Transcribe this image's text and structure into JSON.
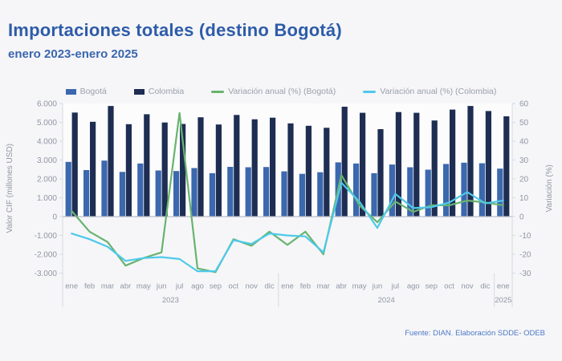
{
  "page": {
    "title": "Importaciones totales (destino Bogotá)",
    "subtitle": "enero 2023-enero 2025",
    "source_note": "Fuente: DIAN. Elaboración SDDE- ODEB"
  },
  "colors": {
    "page_background": "#f6f6f8",
    "plot_background_above_zero": "#fcfcfd",
    "title_blue": "#2e5ca9",
    "source_blue": "#4d79c7",
    "axis_text": "#8f96a3",
    "axis_line": "#b9bdc6",
    "border_line": "#d7d9de",
    "bogota_bar": "#3b68ae",
    "colombia_bar": "#1e2d52",
    "var_bogota_line": "#67b46f",
    "var_colombia_line": "#4ec9ea"
  },
  "chart_data": {
    "type": "combo_bar_line",
    "title": "Importaciones totales (destino Bogotá)",
    "subtitle": "enero 2023-enero 2025",
    "grid": "off",
    "legend_position": "top-center",
    "categories": {
      "months": [
        "ene",
        "feb",
        "mar",
        "abr",
        "may",
        "jun",
        "jul",
        "ago",
        "sep",
        "oct",
        "nov",
        "dic",
        "ene",
        "feb",
        "mar",
        "abr",
        "may",
        "jun",
        "jul",
        "ago",
        "sep",
        "oct",
        "nov",
        "dic",
        "ene"
      ],
      "year_groups": [
        {
          "label": "2023",
          "span": 12
        },
        {
          "label": "2024",
          "span": 12
        },
        {
          "label": "2025",
          "span": 1
        }
      ]
    },
    "left_axis": {
      "title": "Valor CIF (millones USD)",
      "min": -3000,
      "max": 6000,
      "step": 1000,
      "ticks": [
        {
          "label": "6.000",
          "value": 6000
        },
        {
          "label": "5.000",
          "value": 5000
        },
        {
          "label": "4.000",
          "value": 4000
        },
        {
          "label": "3.000",
          "value": 3000
        },
        {
          "label": "2.000",
          "value": 2000
        },
        {
          "label": "1.000",
          "value": 1000
        },
        {
          "label": "0",
          "value": 0
        },
        {
          "label": "-1.000",
          "value": -1000
        },
        {
          "label": "-2.000",
          "value": -2000
        },
        {
          "label": "-3.000",
          "value": -3000
        }
      ]
    },
    "right_axis": {
      "title": "Variación (%)",
      "min": -30,
      "max": 60,
      "step": 10,
      "ticks": [
        {
          "label": "60",
          "value": 60
        },
        {
          "label": "50",
          "value": 50
        },
        {
          "label": "40",
          "value": 40
        },
        {
          "label": "30",
          "value": 30
        },
        {
          "label": "20",
          "value": 20
        },
        {
          "label": "10",
          "value": 10
        },
        {
          "label": "0",
          "value": 0
        },
        {
          "label": "-10",
          "value": -10
        },
        {
          "label": "-20",
          "value": -20
        },
        {
          "label": "-30",
          "value": -30
        }
      ]
    },
    "series": [
      {
        "id": "bogota",
        "name": "Bogotá",
        "type": "bar",
        "axis": "left",
        "color": "#3b68ae",
        "values": [
          2900,
          2470,
          2970,
          2370,
          2815,
          2445,
          2415,
          2575,
          2300,
          2640,
          2615,
          2630,
          2400,
          2270,
          2355,
          2875,
          2815,
          2300,
          2760,
          2615,
          2490,
          2790,
          2860,
          2830,
          2545
        ]
      },
      {
        "id": "colombia",
        "name": "Colombia",
        "type": "bar",
        "axis": "left",
        "color": "#1e2d52",
        "values": [
          5520,
          5030,
          5870,
          4900,
          5430,
          4990,
          4915,
          5270,
          4885,
          5390,
          5160,
          5245,
          4945,
          4815,
          4710,
          5830,
          5505,
          4640,
          5545,
          5505,
          5100,
          5675,
          5870,
          5600,
          5320
        ]
      },
      {
        "id": "var-bogota",
        "name": "Variación anual (%) (Bogotá)",
        "type": "line",
        "axis": "right",
        "color": "#67b46f",
        "values": [
          3,
          -8,
          -13.5,
          -26,
          -22,
          -19,
          55,
          -27.5,
          -29.5,
          -12,
          -15.5,
          -8,
          -15,
          -8,
          -20,
          22,
          6,
          -3,
          8,
          2.5,
          6,
          6,
          8.5,
          7.5,
          6
        ]
      },
      {
        "id": "var-colombia",
        "name": "Variación anual (%) (Colombia)",
        "type": "line",
        "axis": "right",
        "color": "#4ec9ea",
        "values": [
          -9,
          -12,
          -16,
          -23.5,
          -22,
          -21.5,
          -22.5,
          -29,
          -29,
          -12.5,
          -14.5,
          -9,
          -10,
          -10.5,
          -19,
          18,
          8,
          -6,
          12,
          4.5,
          5,
          7.5,
          13,
          7,
          8.5
        ]
      }
    ]
  }
}
